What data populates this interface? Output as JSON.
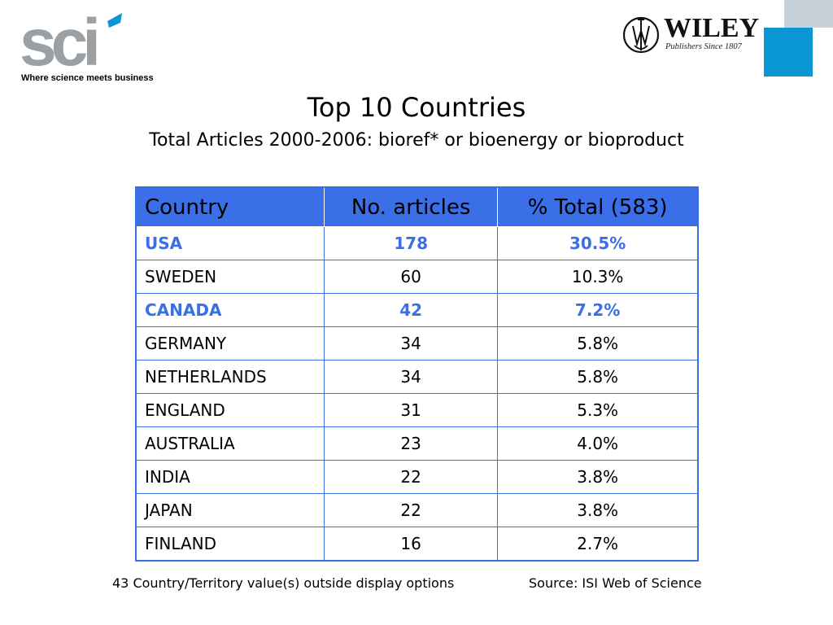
{
  "header": {
    "sci_logo_text": "sci",
    "sci_tagline": "Where science meets business",
    "wiley_name": "WILEY",
    "wiley_subtitle": "Publishers Since 1807"
  },
  "colors": {
    "table_accent": "#3b6fe8",
    "deco_blue": "#0a96d5",
    "deco_grey": "#c6d1da",
    "sci_grey": "#9aa0a4"
  },
  "title": "Top 10 Countries",
  "subtitle": "Total Articles 2000-2006: bioref* or bioenergy or bioproduct",
  "table": {
    "headers": [
      "Country",
      "No. articles",
      "% Total (583)"
    ],
    "rows": [
      {
        "country": "USA",
        "articles": "178",
        "percent": "30.5%",
        "highlight": true
      },
      {
        "country": "SWEDEN",
        "articles": "60",
        "percent": "10.3%",
        "highlight": false
      },
      {
        "country": "CANADA",
        "articles": "42",
        "percent": "7.2%",
        "highlight": true
      },
      {
        "country": "GERMANY",
        "articles": "34",
        "percent": "5.8%",
        "highlight": false
      },
      {
        "country": "NETHERLANDS",
        "articles": "34",
        "percent": "5.8%",
        "highlight": false
      },
      {
        "country": "ENGLAND",
        "articles": "31",
        "percent": "5.3%",
        "highlight": false
      },
      {
        "country": "AUSTRALIA",
        "articles": "23",
        "percent": "4.0%",
        "highlight": false
      },
      {
        "country": "INDIA",
        "articles": "22",
        "percent": "3.8%",
        "highlight": false
      },
      {
        "country": "JAPAN",
        "articles": "22",
        "percent": "3.8%",
        "highlight": false
      },
      {
        "country": "FINLAND",
        "articles": "16",
        "percent": "2.7%",
        "highlight": false
      }
    ]
  },
  "footer": {
    "note": "43 Country/Territory value(s) outside display options",
    "source": "Source: ISI Web of Science"
  }
}
